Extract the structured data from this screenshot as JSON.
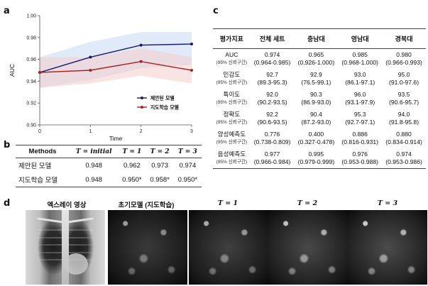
{
  "panels": {
    "a": "a",
    "b": "b",
    "c": "c",
    "d": "d"
  },
  "chart_data": {
    "type": "line",
    "title": "",
    "xlabel": "Time",
    "ylabel": "AUC",
    "x": [
      0,
      1,
      2,
      3
    ],
    "xticks": [
      "0",
      "1",
      "2",
      "3"
    ],
    "ylim": [
      0.9,
      1.0
    ],
    "yticks": [
      "0.90",
      "0.92",
      "0.94",
      "0.96",
      "0.98",
      "1.00"
    ],
    "legend_position": "bottom-right",
    "series": [
      {
        "name": "제안된 모델",
        "color": "#1a1a6e",
        "band": "#c9d8f2",
        "values": [
          0.948,
          0.962,
          0.973,
          0.974
        ],
        "lower": [
          0.934,
          0.941,
          0.952,
          0.955
        ],
        "upper": [
          0.962,
          0.976,
          0.985,
          0.985
        ]
      },
      {
        "name": "지도학습 모델",
        "color": "#a82020",
        "band": "#f4cccc",
        "values": [
          0.948,
          0.95,
          0.958,
          0.95
        ],
        "lower": [
          0.934,
          0.938,
          0.945,
          0.938
        ],
        "upper": [
          0.962,
          0.962,
          0.97,
          0.962
        ]
      }
    ]
  },
  "table_b": {
    "headers": [
      "Methods",
      "T = initial",
      "T = 1",
      "T = 2",
      "T = 3"
    ],
    "rows": [
      {
        "name": "제안된 모델",
        "cells": [
          "0.948",
          "0.962",
          "0.973",
          "0.974"
        ]
      },
      {
        "name": "지도학습 모델",
        "cells": [
          "0.948",
          "0.950*",
          "0.958*",
          "0.950*"
        ]
      }
    ]
  },
  "table_c": {
    "headers": [
      "평가지표",
      "전체 세트",
      "충남대",
      "영남대",
      "경북대"
    ],
    "ci_note": "(95% 신뢰구간)",
    "rows": [
      {
        "metric": "AUC",
        "cells": [
          [
            "0.974",
            "(0.964-0.985)"
          ],
          [
            "0.965",
            "(0.926-1.000)"
          ],
          [
            "0.985",
            "(0.968-1.000)"
          ],
          [
            "0.980",
            "(0.966-0.993)"
          ]
        ]
      },
      {
        "metric": "민감도",
        "cells": [
          [
            "92.7",
            "(89.3-95.3)"
          ],
          [
            "92.9",
            "(76.5-99.1)"
          ],
          [
            "93.0",
            "(86.1-97.1)"
          ],
          [
            "95.0",
            "(91.0-97.6)"
          ]
        ]
      },
      {
        "metric": "특이도",
        "cells": [
          [
            "92.0",
            "(90.2-93.5)"
          ],
          [
            "90.3",
            "(86.9-93.0)"
          ],
          [
            "96.0",
            "(93.1-97.9)"
          ],
          [
            "93.5",
            "(90.6-95.7)"
          ]
        ]
      },
      {
        "metric": "정확도",
        "cells": [
          [
            "92.2",
            "(90.6-93.5)"
          ],
          [
            "90.4",
            "(87.2-93.0)"
          ],
          [
            "95.3",
            "(92.7-97.1)"
          ],
          [
            "94.0",
            "(91.8-95.8)"
          ]
        ]
      },
      {
        "metric": "양성예측도",
        "cells": [
          [
            "0.776",
            "(0.738-0.809)"
          ],
          [
            "0.400",
            "(0.327-0.478)"
          ],
          [
            "0.886",
            "(0.816-0.931)"
          ],
          [
            "0.880",
            "(0.834-0.914)"
          ]
        ]
      },
      {
        "metric": "음성예측도",
        "cells": [
          [
            "0.977",
            "(0.966-0.984)"
          ],
          [
            "0.995",
            "(0.979-0.999)"
          ],
          [
            "0.976",
            "(0.953-0.988)"
          ],
          [
            "0.974",
            "(0.953-0.986)"
          ]
        ]
      }
    ]
  },
  "panel_d": {
    "headers": [
      "엑스레이 영상",
      "초기모델 (지도학습)",
      "T = 1",
      "T = 2",
      "T = 3"
    ]
  }
}
